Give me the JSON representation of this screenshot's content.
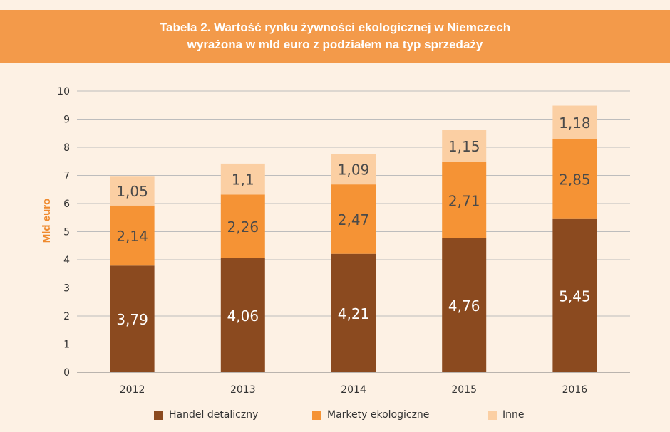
{
  "title": {
    "line1": "Tabela 2. Wartość rynku żywności ekologicznej w Niemczech",
    "line2": "wyrażona w mld euro z podziałem na typ sprzedaży"
  },
  "colors": {
    "title_bg": "#f39a4a",
    "ylabel": "#ef8a2e",
    "series": [
      "#8b4a1f",
      "#f59335",
      "#fbcfa3"
    ]
  },
  "chart_data": {
    "type": "bar",
    "stacked": true,
    "title": "Tabela 2. Wartość rynku żywności ekologicznej w Niemczech wyrażona w mld euro z podziałem na typ sprzedaży",
    "xlabel": "",
    "ylabel": "Mld euro",
    "ylim": [
      0,
      10
    ],
    "yticks": [
      "0",
      "1",
      "2",
      "3",
      "4",
      "5",
      "6",
      "7",
      "8",
      "9",
      "10"
    ],
    "grid": true,
    "legend_position": "bottom",
    "categories": [
      "2012",
      "2013",
      "2014",
      "2015",
      "2016"
    ],
    "series": [
      {
        "name": "Handel detaliczny",
        "values": [
          3.79,
          4.06,
          4.21,
          4.76,
          5.45
        ],
        "labels": [
          "3,79",
          "4,06",
          "4,21",
          "4,76",
          "5,45"
        ]
      },
      {
        "name": "Markety ekologiczne",
        "values": [
          2.14,
          2.26,
          2.47,
          2.71,
          2.85
        ],
        "labels": [
          "2,14",
          "2,26",
          "2,47",
          "2,71",
          "2,85"
        ]
      },
      {
        "name": "Inne",
        "values": [
          1.05,
          1.1,
          1.09,
          1.15,
          1.18
        ],
        "labels": [
          "1,05",
          "1,1",
          "1,09",
          "1,15",
          "1,18"
        ]
      }
    ]
  }
}
